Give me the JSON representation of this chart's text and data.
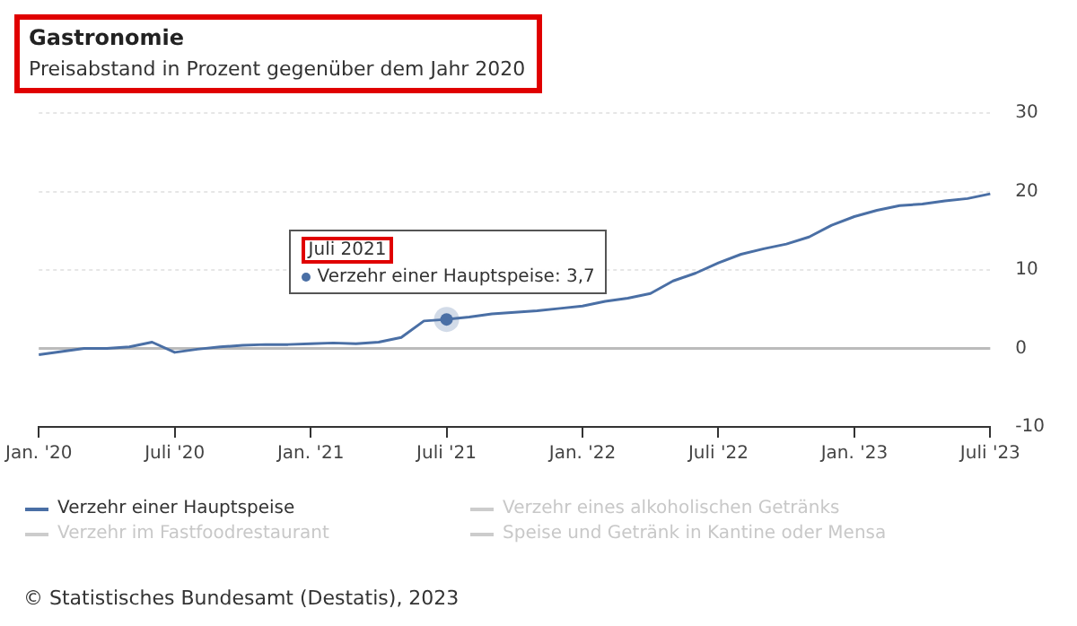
{
  "chart_data": {
    "type": "line",
    "title": "Gastronomie",
    "subtitle": "Preisabstand in Prozent gegenüber dem Jahr 2020",
    "categories": [
      "Jan. '20",
      null,
      null,
      null,
      null,
      null,
      "Juli '20",
      null,
      null,
      null,
      null,
      null,
      "Jan. '21",
      null,
      null,
      null,
      null,
      null,
      "Juli '21",
      null,
      null,
      null,
      null,
      null,
      "Jan. '22",
      null,
      null,
      null,
      null,
      null,
      "Juli '22",
      null,
      null,
      null,
      null,
      null,
      "Jan. '23",
      null,
      null,
      null,
      null,
      null,
      "Juli '23"
    ],
    "series": [
      {
        "name": "Verzehr einer Hauptspeise",
        "color": "#4a6fa5",
        "values": [
          -0.8,
          -0.4,
          0.0,
          0.0,
          0.2,
          0.8,
          -0.5,
          -0.1,
          0.2,
          0.4,
          0.5,
          0.5,
          0.6,
          0.7,
          0.6,
          0.8,
          1.4,
          3.5,
          3.7,
          4.0,
          4.4,
          4.6,
          4.8,
          5.1,
          5.4,
          6.0,
          6.4,
          7.0,
          8.6,
          9.6,
          10.9,
          12.0,
          12.7,
          13.3,
          14.2,
          15.7,
          16.8,
          17.6,
          18.2,
          18.4,
          18.8,
          19.1,
          19.7
        ]
      },
      {
        "name": "Verzehr eines alkoholischen Getränks",
        "color": "#cccccc",
        "values": [
          null,
          null,
          null,
          null,
          null,
          null,
          null,
          null,
          null,
          null,
          null,
          null,
          null,
          null,
          null,
          null,
          null,
          null,
          null,
          null,
          null,
          null,
          null,
          null,
          null,
          null,
          null,
          null,
          null,
          null,
          null,
          null,
          null,
          null,
          null,
          null,
          null,
          null,
          null,
          null,
          null,
          null,
          null
        ]
      },
      {
        "name": "Verzehr im Fastfoodrestaurant",
        "color": "#cccccc",
        "values": [
          null,
          null,
          null,
          null,
          null,
          null,
          null,
          null,
          null,
          null,
          null,
          null,
          null,
          null,
          null,
          null,
          null,
          null,
          null,
          null,
          null,
          null,
          null,
          null,
          null,
          null,
          null,
          null,
          null,
          null,
          null,
          null,
          null,
          null,
          null,
          null,
          null,
          null,
          null,
          null,
          null,
          null,
          null
        ]
      },
      {
        "name": "Speise und Getränk in Kantine oder Mensa",
        "color": "#cccccc",
        "values": [
          null,
          null,
          null,
          null,
          null,
          null,
          null,
          null,
          null,
          null,
          null,
          null,
          null,
          null,
          null,
          null,
          null,
          null,
          null,
          null,
          null,
          null,
          null,
          null,
          null,
          null,
          null,
          null,
          null,
          null,
          null,
          null,
          null,
          null,
          null,
          null,
          null,
          null,
          null,
          null,
          null,
          null,
          null
        ]
      }
    ],
    "ylim": [
      -10,
      30
    ],
    "yticks": [
      -10,
      0,
      10,
      20,
      30
    ],
    "grid": "y",
    "legend": "bottom",
    "marker": "none",
    "line_style": "solid",
    "ref_lines": [
      {
        "axis": "y",
        "value": 0,
        "color": "#bbbbbb"
      }
    ],
    "annotations": [
      "Juli 2021",
      {
        "text": "Verzehr einer Hauptspeise: 3,7",
        "x": "Juli '21",
        "y": 3.7
      },
      "© Statistisches Bundesamt (Destatis), 2023"
    ]
  }
}
